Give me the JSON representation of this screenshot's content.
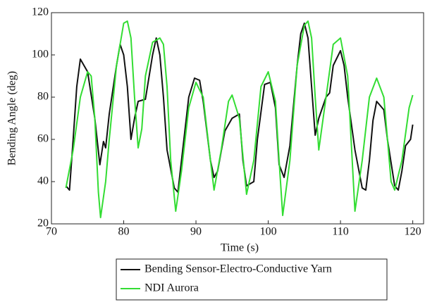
{
  "chart_data": {
    "type": "line",
    "xlabel": "Time (s)",
    "ylabel": "Bending Angle (deg)",
    "xlim": [
      70,
      121.5
    ],
    "ylim": [
      20,
      120
    ],
    "xticks": [
      70,
      80,
      90,
      100,
      110,
      120
    ],
    "yticks": [
      20,
      40,
      60,
      80,
      100,
      120
    ],
    "legend": "bottom",
    "series": [
      {
        "name": "Bending Sensor-Electro-Conductive Yarn",
        "color": "#111111",
        "x": [
          72,
          72.5,
          73,
          73.5,
          74,
          75,
          76,
          76.7,
          77.2,
          77.5,
          78,
          79,
          79.5,
          80,
          80.5,
          81,
          81.5,
          82,
          83,
          84,
          84.5,
          85,
          85.5,
          86,
          87,
          87.5,
          88,
          89,
          89.8,
          90.5,
          91,
          92,
          92.5,
          93,
          94,
          94.5,
          95,
          96,
          96.5,
          97,
          98,
          98.5,
          99.5,
          100.3,
          101,
          101.5,
          102.2,
          103,
          104,
          104.5,
          105,
          105.5,
          106,
          106.5,
          107,
          108,
          108.5,
          109,
          110,
          110.5,
          111,
          112,
          113,
          113.5,
          114,
          114.5,
          115,
          116,
          116.5,
          117.5,
          118,
          118.5,
          119,
          119.7,
          120
        ],
        "values": [
          38,
          36,
          60,
          85,
          98,
          92,
          70,
          48,
          59,
          56,
          72,
          95,
          105,
          100,
          85,
          60,
          70,
          78,
          79,
          100,
          108,
          100,
          80,
          55,
          37,
          35,
          50,
          80,
          89,
          88,
          78,
          50,
          42,
          45,
          64,
          67,
          70,
          72,
          50,
          38,
          40,
          60,
          86,
          87,
          75,
          48,
          42,
          57,
          95,
          110,
          115,
          108,
          85,
          62,
          70,
          80,
          82,
          95,
          102,
          95,
          80,
          55,
          37,
          36,
          50,
          69,
          78,
          74,
          60,
          38,
          36,
          45,
          57,
          60,
          67
        ]
      },
      {
        "name": "NDI Aurora",
        "color": "#33dd33",
        "x": [
          72,
          73,
          74,
          75,
          75.5,
          76,
          76.5,
          76.8,
          77.5,
          78,
          79,
          80,
          80.5,
          81,
          81.5,
          82,
          82.5,
          83,
          84,
          85,
          85.5,
          86,
          86.5,
          87.2,
          88,
          89,
          90,
          91,
          92,
          92.5,
          93.5,
          94.5,
          95,
          96,
          97,
          98,
          99,
          100,
          101,
          101.5,
          102,
          103,
          104,
          105,
          105.5,
          106,
          106.5,
          107,
          108,
          109,
          110,
          111,
          112,
          113,
          114,
          115,
          116,
          117,
          117.5,
          118.5,
          119.5,
          120
        ],
        "values": [
          37,
          55,
          80,
          92,
          90,
          70,
          35,
          23,
          40,
          60,
          95,
          115,
          116,
          108,
          80,
          56,
          65,
          90,
          106,
          108,
          105,
          85,
          50,
          26,
          45,
          75,
          87,
          80,
          50,
          36,
          55,
          78,
          81,
          70,
          34,
          50,
          85,
          92,
          78,
          50,
          24,
          50,
          95,
          114,
          116,
          108,
          80,
          55,
          80,
          105,
          108,
          90,
          26,
          50,
          80,
          89,
          80,
          40,
          36,
          50,
          75,
          81
        ]
      }
    ]
  }
}
